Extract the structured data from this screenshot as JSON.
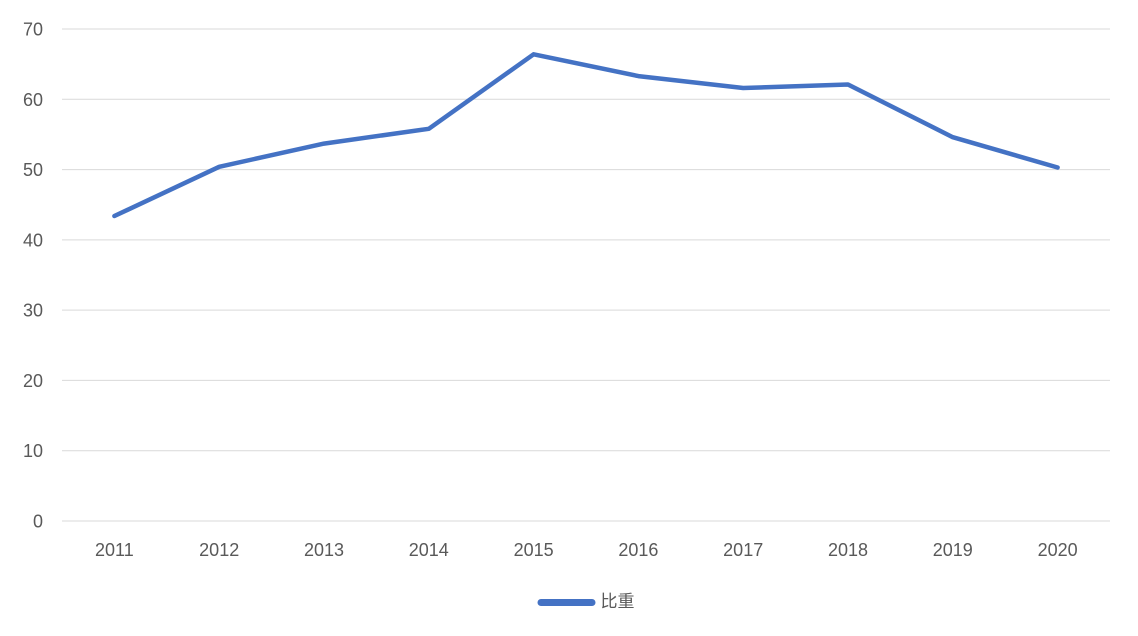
{
  "chart_data": {
    "type": "line",
    "title": "",
    "xlabel": "",
    "ylabel": "",
    "categories": [
      "2011",
      "2012",
      "2013",
      "2014",
      "2015",
      "2016",
      "2017",
      "2018",
      "2019",
      "2020"
    ],
    "series": [
      {
        "name": "比重",
        "values": [
          43.4,
          50.4,
          53.7,
          55.8,
          66.4,
          63.3,
          61.6,
          62.1,
          54.6,
          50.3
        ]
      }
    ],
    "ylim": [
      0,
      70
    ],
    "yticks": [
      0,
      10,
      20,
      30,
      40,
      50,
      60,
      70
    ],
    "grid": "horizontal-only",
    "legend": {
      "position": "bottom-center",
      "label": "比重"
    },
    "colors": {
      "line": "#4472C4",
      "gridline": "#D9D9D9",
      "tick_label": "#595959",
      "legend_text": "#595959",
      "background": "#FFFFFF"
    }
  }
}
